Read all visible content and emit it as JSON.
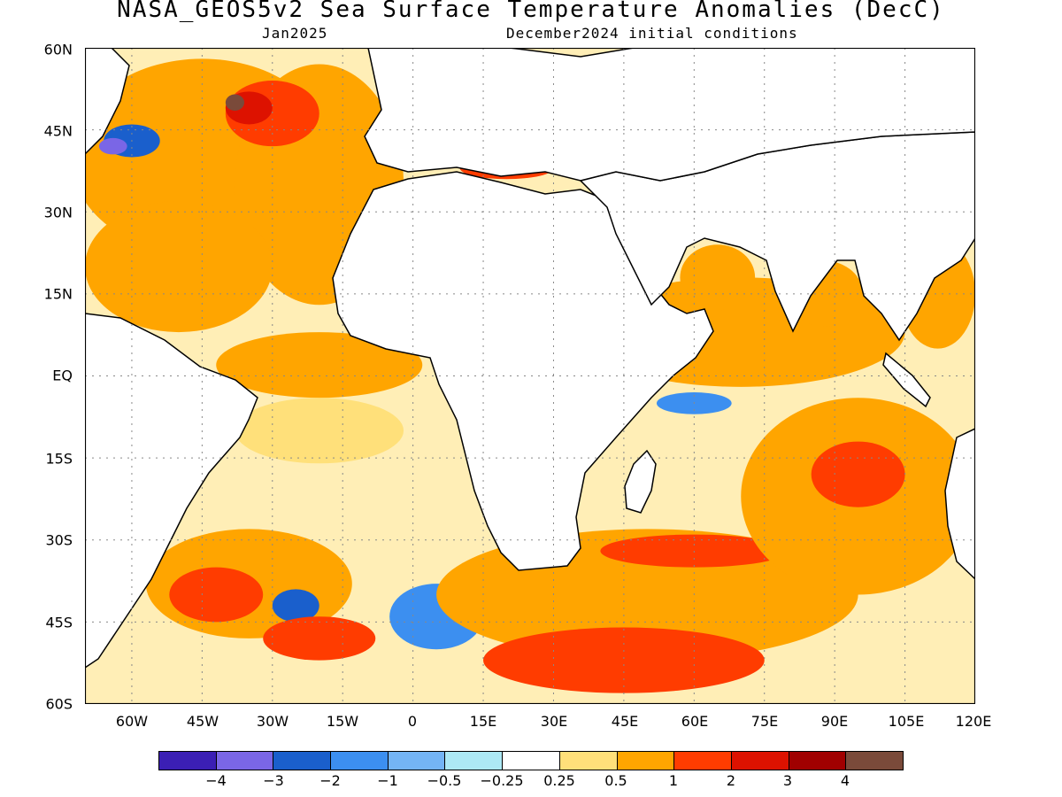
{
  "title": "NASA_GEOS5v2 Sea Surface Temperature Anomalies (DecC)",
  "subtitle_left": "Jan2025",
  "subtitle_right": "December2024 initial conditions",
  "lat_labels": [
    "60N",
    "45N",
    "30N",
    "15N",
    "EQ",
    "15S",
    "30S",
    "45S",
    "60S"
  ],
  "lon_labels": [
    "60W",
    "45W",
    "30W",
    "15W",
    "0",
    "15E",
    "30E",
    "45E",
    "60E",
    "75E",
    "90E",
    "105E",
    "120E"
  ],
  "colorbar": {
    "colors": [
      "#3b1fb4",
      "#7a66e6",
      "#1a5fcc",
      "#3c8ff0",
      "#74b4f5",
      "#ade9f5",
      "#ffffff",
      "#ffe07a",
      "#ffa500",
      "#ff3c00",
      "#dd1200",
      "#a00000",
      "#7a4a3a"
    ],
    "labels": [
      "−4",
      "−3",
      "−2",
      "−1",
      "−0.5",
      "−0.25",
      "0.25",
      "0.5",
      "1",
      "2",
      "3",
      "4"
    ]
  },
  "map": {
    "lon_range": [
      -70,
      120
    ],
    "lat_range": [
      -60,
      60
    ],
    "grid": true,
    "land_color": "#ffffff",
    "coastline_color": "#000000",
    "anomaly_regions": [
      {
        "level": 1,
        "lon": -45,
        "lat": 40,
        "rx": 28,
        "ry": 18
      },
      {
        "level": 1,
        "lon": -20,
        "lat": 35,
        "rx": 18,
        "ry": 22
      },
      {
        "level": 1,
        "lon": -50,
        "lat": 20,
        "rx": 20,
        "ry": 12
      },
      {
        "level": 2,
        "lon": -30,
        "lat": 48,
        "rx": 10,
        "ry": 6
      },
      {
        "level": 3,
        "lon": -35,
        "lat": 49,
        "rx": 5,
        "ry": 3
      },
      {
        "level": 4,
        "lon": -38,
        "lat": 50,
        "rx": 2,
        "ry": 1.5
      },
      {
        "level": -2,
        "lon": -60,
        "lat": 43,
        "rx": 6,
        "ry": 3
      },
      {
        "level": -3,
        "lon": -64,
        "lat": 42,
        "rx": 3,
        "ry": 1.5
      },
      {
        "level": 1,
        "lon": -20,
        "lat": 2,
        "rx": 22,
        "ry": 6
      },
      {
        "level": 0.5,
        "lon": -20,
        "lat": -10,
        "rx": 18,
        "ry": 6
      },
      {
        "level": 1,
        "lon": -35,
        "lat": -38,
        "rx": 22,
        "ry": 10
      },
      {
        "level": 2,
        "lon": -42,
        "lat": -40,
        "rx": 10,
        "ry": 5
      },
      {
        "level": -2,
        "lon": -25,
        "lat": -42,
        "rx": 5,
        "ry": 3
      },
      {
        "level": 2,
        "lon": -20,
        "lat": -48,
        "rx": 12,
        "ry": 4
      },
      {
        "level": -1,
        "lon": 5,
        "lat": -44,
        "rx": 10,
        "ry": 6
      },
      {
        "level": 1,
        "lon": 50,
        "lat": -40,
        "rx": 45,
        "ry": 12
      },
      {
        "level": 2,
        "lon": 45,
        "lat": -52,
        "rx": 30,
        "ry": 6
      },
      {
        "level": 2,
        "lon": 60,
        "lat": -32,
        "rx": 20,
        "ry": 3
      },
      {
        "level": 1,
        "lon": 95,
        "lat": -22,
        "rx": 25,
        "ry": 18
      },
      {
        "level": 2,
        "lon": 95,
        "lat": -18,
        "rx": 10,
        "ry": 6
      },
      {
        "level": 1,
        "lon": 70,
        "lat": 8,
        "rx": 35,
        "ry": 10
      },
      {
        "level": 1,
        "lon": 65,
        "lat": 18,
        "rx": 8,
        "ry": 6
      },
      {
        "level": 1,
        "lon": 88,
        "lat": 15,
        "rx": 8,
        "ry": 6
      },
      {
        "level": -1,
        "lon": 60,
        "lat": -5,
        "rx": 8,
        "ry": 2
      },
      {
        "level": 1,
        "lon": 112,
        "lat": 15,
        "rx": 8,
        "ry": 10
      },
      {
        "level": 2,
        "lon": 20,
        "lat": 38,
        "rx": 10,
        "ry": 2
      }
    ]
  }
}
